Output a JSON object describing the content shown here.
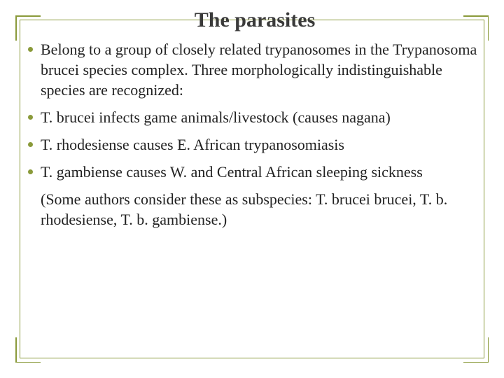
{
  "slide": {
    "title": "The parasites",
    "bullets": [
      "Belong to a group of closely related trypanosomes in the Trypanosoma brucei species complex. Three morphologically indistinguishable species are recognized:",
      "T. brucei   infects game animals/livestock (causes nagana)",
      "T. rhodesiense causes E. African trypanosomiasis",
      "T. gambiense  causes W. and Central African sleeping sickness"
    ],
    "note": "(Some authors consider these as subspecies: T. brucei brucei, T. b. rhodesiense, T. b. gambiense.)"
  },
  "style": {
    "accent_color": "#8a9a3a",
    "background_color": "#ffffff",
    "title_color": "#3a3a3a",
    "body_color": "#222222",
    "title_fontsize": 30,
    "body_fontsize": 22,
    "font_family": "Garamond"
  }
}
